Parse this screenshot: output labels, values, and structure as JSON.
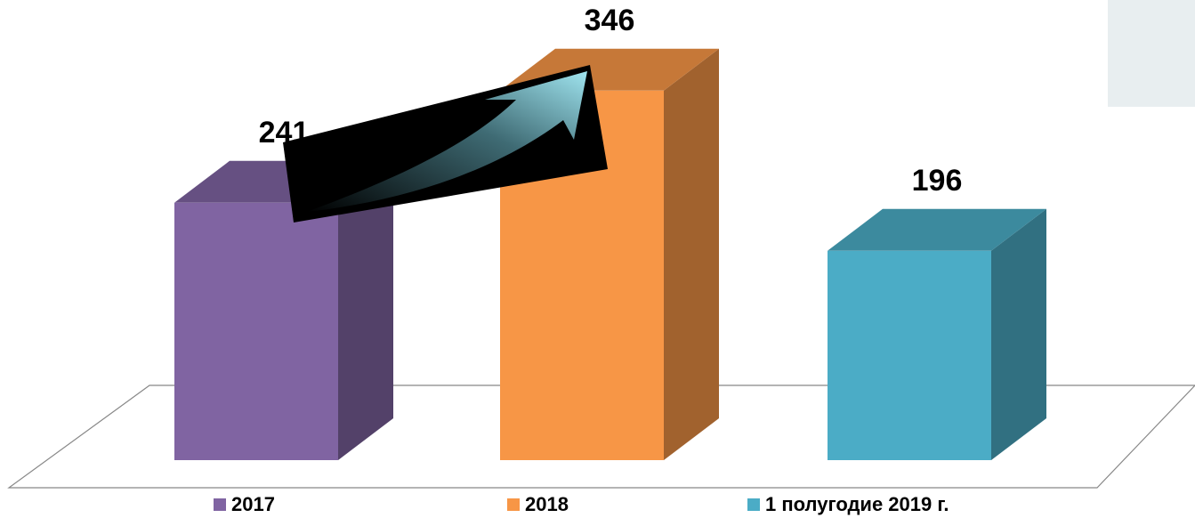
{
  "chart_data": {
    "type": "bar",
    "series": [
      {
        "name": "2017",
        "color": "#8064a2",
        "values": [
          241
        ]
      },
      {
        "name": "2018",
        "color": "#f79646",
        "values": [
          346
        ]
      },
      {
        "name": "1 полугодие 2019 г.",
        "color": "#4bacc6",
        "values": [
          196
        ]
      }
    ],
    "ylim": [
      0,
      350
    ]
  }
}
